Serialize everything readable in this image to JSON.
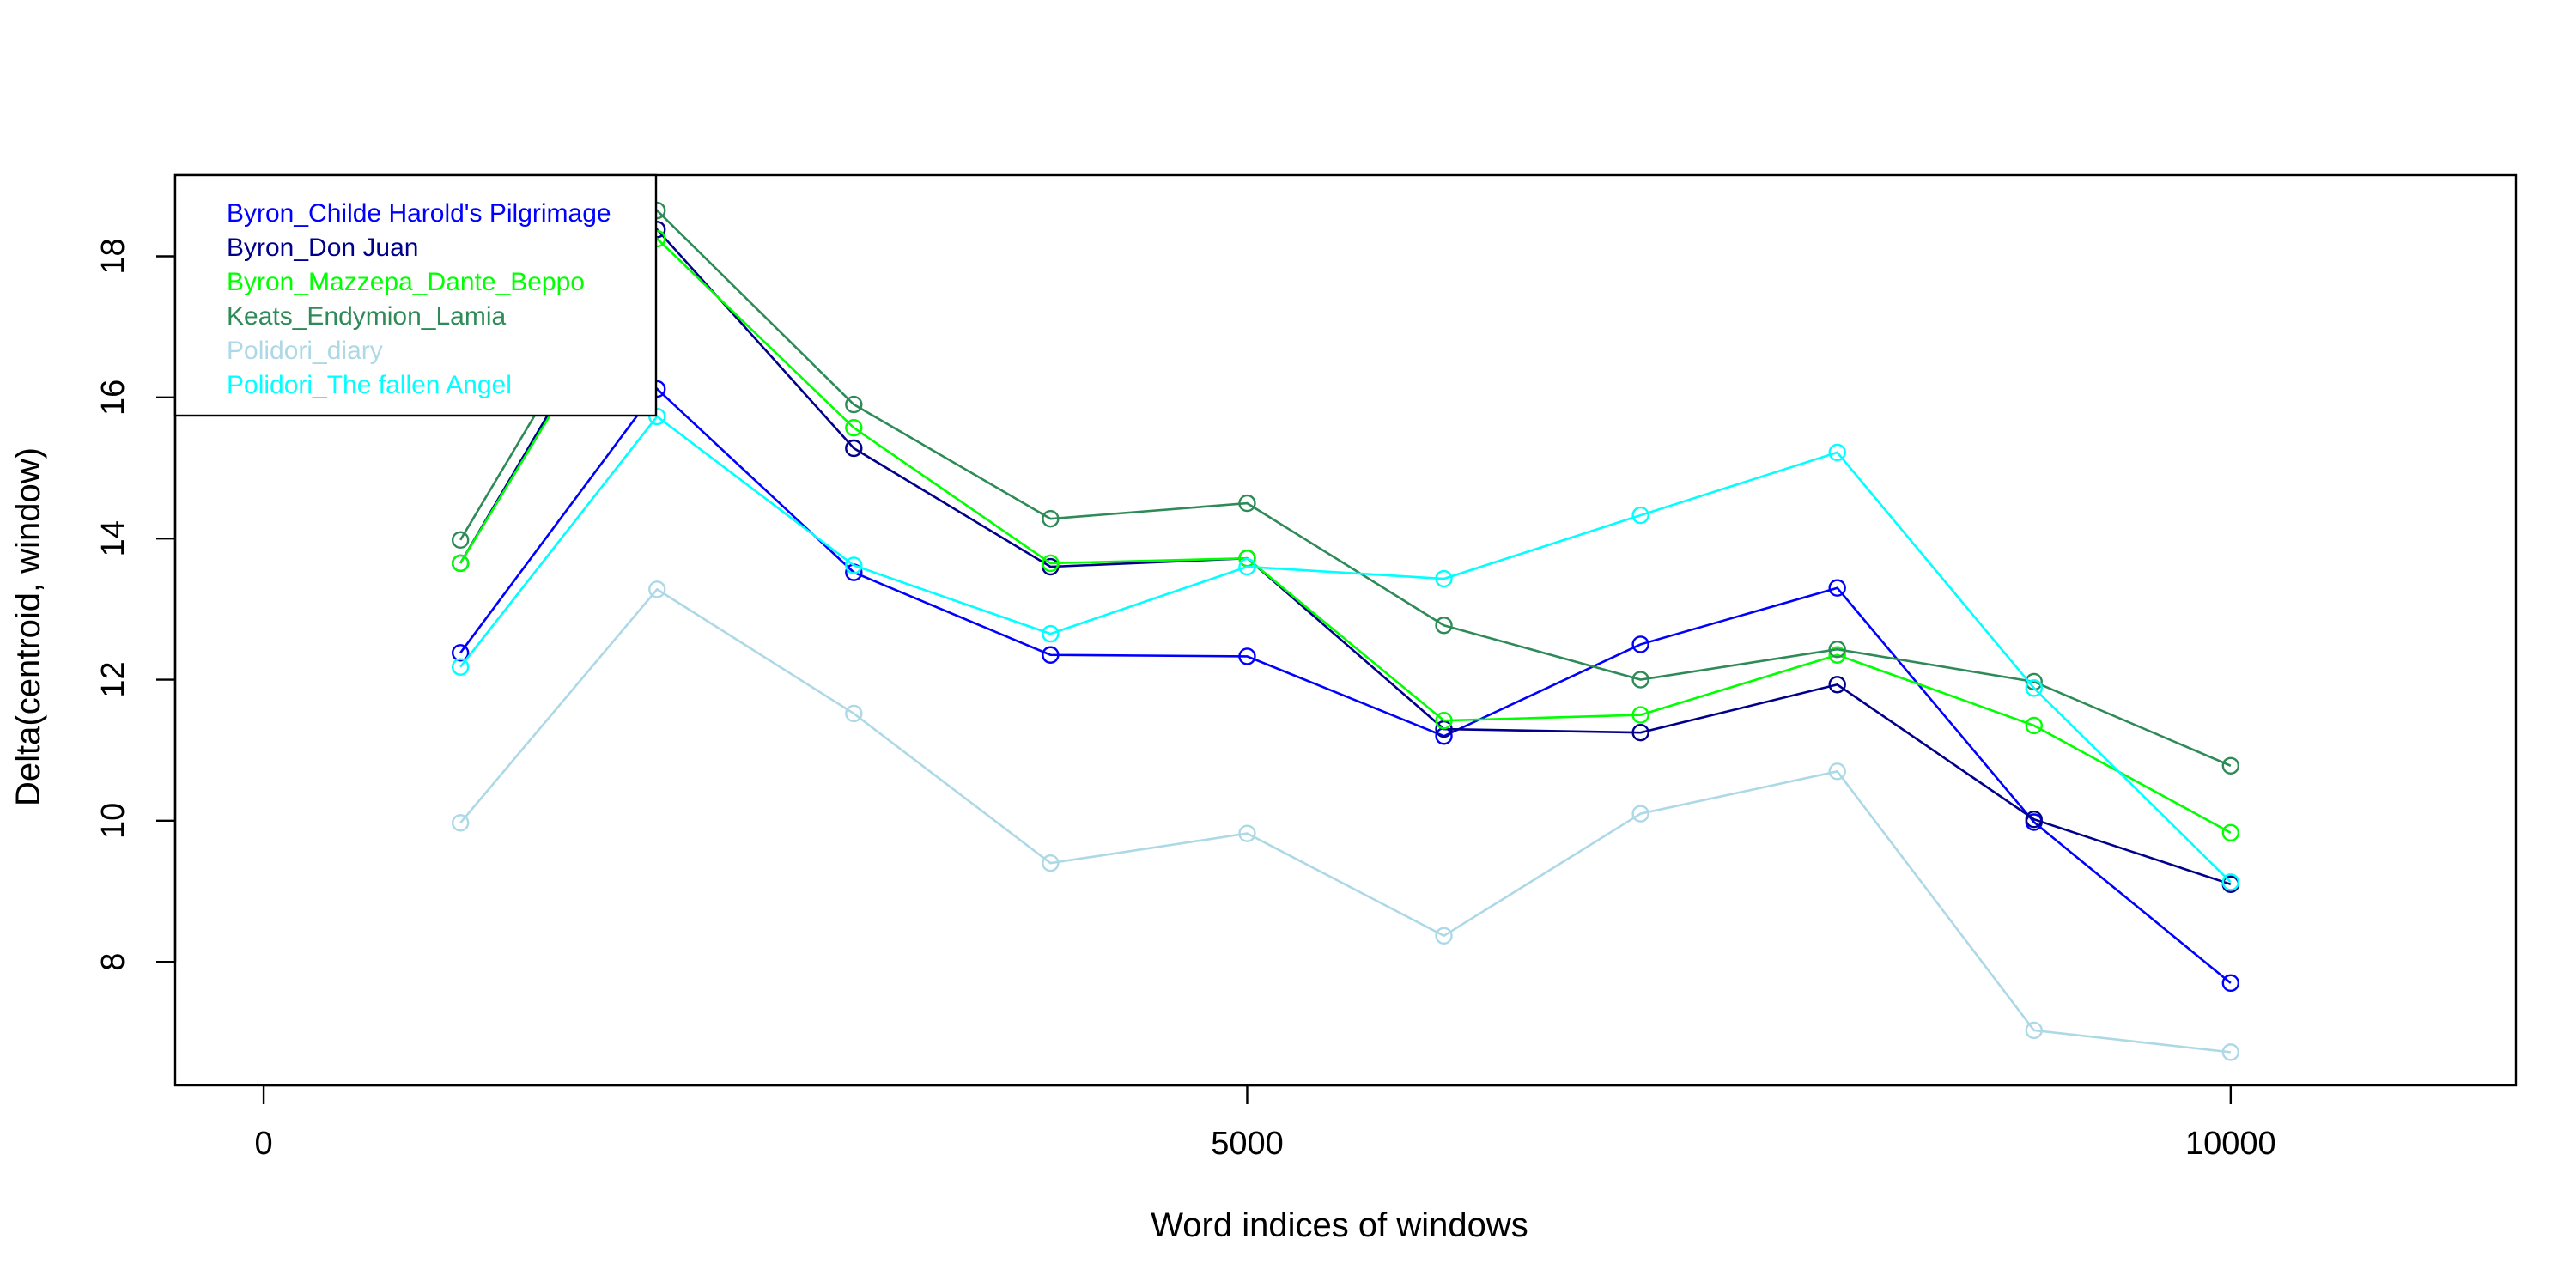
{
  "chart_data": {
    "type": "line",
    "title": "",
    "xlabel": "Word indices of windows",
    "ylabel": "Delta(centroid, window)",
    "xlim": [
      -450,
      11450
    ],
    "ylim": [
      6.25,
      19.15
    ],
    "xticks": [
      0,
      5000,
      10000
    ],
    "yticks": [
      8,
      10,
      12,
      14,
      16,
      18
    ],
    "grid": false,
    "legend_position": "top-left",
    "x": [
      1000,
      2000,
      3000,
      4000,
      5000,
      6000,
      7000,
      8000,
      9000,
      10000
    ],
    "series": [
      {
        "name": "Byron_Childe Harold's Pilgrimage",
        "color": "#0000ff",
        "values": [
          12.38,
          16.12,
          13.52,
          12.35,
          12.33,
          11.2,
          12.5,
          13.3,
          9.98,
          7.7
        ]
      },
      {
        "name": "Byron_Don Juan",
        "color": "#00008b",
        "values": [
          13.65,
          18.38,
          15.28,
          13.6,
          13.72,
          11.3,
          11.25,
          11.93,
          10.02,
          9.1
        ]
      },
      {
        "name": "Byron_Mazzepa_Dante_Beppo",
        "color": "#00ff00",
        "values": [
          13.65,
          18.25,
          15.57,
          13.65,
          13.72,
          11.42,
          11.5,
          12.35,
          11.35,
          9.83
        ]
      },
      {
        "name": "Keats_Endymion_Lamia",
        "color": "#2e8b57",
        "values": [
          13.98,
          18.65,
          15.9,
          14.28,
          14.5,
          12.77,
          12.0,
          12.43,
          11.97,
          10.78
        ]
      },
      {
        "name": "Polidori_diary",
        "color": "#add8e6",
        "values": [
          9.97,
          13.28,
          11.52,
          9.4,
          9.82,
          8.37,
          10.1,
          10.7,
          7.03,
          6.72
        ]
      },
      {
        "name": "Polidori_The fallen Angel",
        "color": "#00ffff",
        "values": [
          12.18,
          15.73,
          13.62,
          12.65,
          13.6,
          13.43,
          14.33,
          15.22,
          11.88,
          9.13
        ]
      }
    ]
  }
}
